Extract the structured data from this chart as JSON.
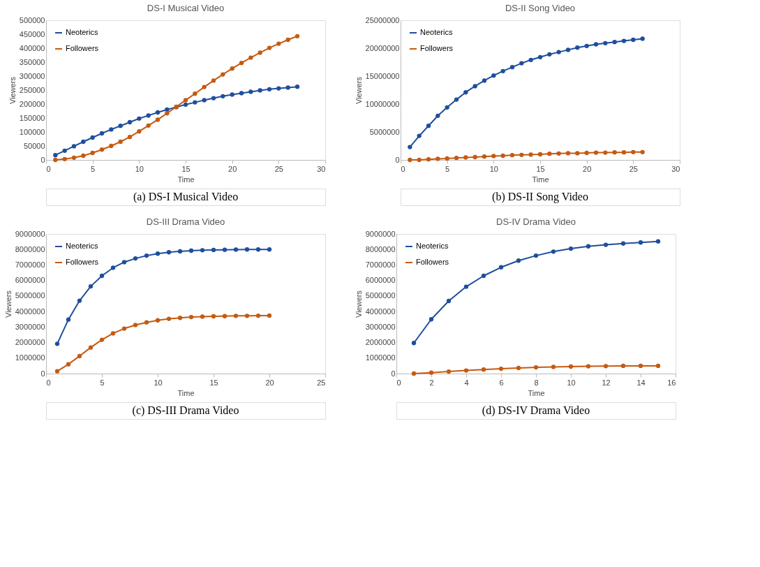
{
  "chart_data": [
    {
      "type": "line",
      "title": "DS-I Musical Video",
      "xlabel": "Time",
      "ylabel": "Viewers",
      "annotations": [
        "(a) DS-I Musical Video"
      ],
      "x": [
        1,
        2,
        3,
        4,
        5,
        6,
        7,
        8,
        9,
        10,
        11,
        12,
        13,
        14,
        15,
        16,
        17,
        18,
        19,
        20,
        21,
        22,
        23,
        24,
        25,
        26,
        27
      ],
      "series": [
        {
          "name": "Neoterics",
          "color": "#1f4e9c",
          "values": [
            17000,
            33000,
            49000,
            65000,
            80000,
            95000,
            109000,
            122000,
            135000,
            148000,
            159000,
            170000,
            180000,
            189000,
            198000,
            206000,
            214000,
            221000,
            228000,
            234000,
            239000,
            244000,
            249000,
            253000,
            256000,
            259000,
            262000
          ]
        },
        {
          "name": "Followers",
          "color": "#c55a11",
          "values": [
            0,
            3000,
            8000,
            15000,
            25000,
            37000,
            50000,
            65000,
            82000,
            102000,
            123000,
            144000,
            167000,
            190000,
            214000,
            237000,
            261000,
            284000,
            306000,
            327000,
            347000,
            366000,
            384000,
            401000,
            416000,
            430000,
            443000
          ]
        }
      ],
      "xlim": [
        0,
        30
      ],
      "xticks": [
        0,
        5,
        10,
        15,
        20,
        25,
        30
      ],
      "ylim": [
        0,
        500000
      ],
      "yticks": [
        0,
        50000,
        100000,
        150000,
        200000,
        250000,
        300000,
        350000,
        400000,
        450000,
        500000
      ],
      "legend": "top left",
      "marker": "circle",
      "line_style": "solid"
    },
    {
      "type": "line",
      "title": "DS-II Song Video",
      "xlabel": "Time",
      "ylabel": "Viewers",
      "annotations": [
        "(b) DS-II Song Video"
      ],
      "x": [
        1,
        2,
        3,
        4,
        5,
        6,
        7,
        8,
        9,
        10,
        11,
        12,
        13,
        14,
        15,
        16,
        17,
        18,
        19,
        20,
        21,
        22,
        23,
        24,
        25,
        26
      ],
      "series": [
        {
          "name": "Neoterics",
          "color": "#1f4e9c",
          "values": [
            2300000,
            4300000,
            6100000,
            7900000,
            9400000,
            10800000,
            12100000,
            13200000,
            14200000,
            15100000,
            15900000,
            16600000,
            17300000,
            17900000,
            18400000,
            18900000,
            19300000,
            19700000,
            20100000,
            20400000,
            20700000,
            20900000,
            21100000,
            21300000,
            21500000,
            21700000
          ]
        },
        {
          "name": "Followers",
          "color": "#c55a11",
          "values": [
            0,
            0,
            100000,
            200000,
            250000,
            350000,
            450000,
            500000,
            600000,
            700000,
            750000,
            850000,
            900000,
            950000,
            1000000,
            1100000,
            1150000,
            1200000,
            1200000,
            1250000,
            1300000,
            1300000,
            1350000,
            1350000,
            1400000,
            1400000
          ]
        }
      ],
      "xlim": [
        0,
        30
      ],
      "xticks": [
        0,
        5,
        10,
        15,
        20,
        25,
        30
      ],
      "ylim": [
        0,
        25000000
      ],
      "yticks": [
        0,
        5000000,
        10000000,
        15000000,
        20000000,
        25000000
      ],
      "legend": "top left",
      "marker": "circle",
      "line_style": "solid"
    },
    {
      "type": "line",
      "title": "DS-III Drama Video",
      "xlabel": "Time",
      "ylabel": "Viewers",
      "annotations": [
        "(c) DS-III Drama Video"
      ],
      "x": [
        1,
        2,
        3,
        4,
        5,
        6,
        7,
        8,
        9,
        10,
        11,
        12,
        13,
        14,
        15,
        16,
        17,
        18,
        19,
        20
      ],
      "series": [
        {
          "name": "Neoterics",
          "color": "#1f4e9c",
          "values": [
            1920000,
            3480000,
            4700000,
            5620000,
            6300000,
            6820000,
            7180000,
            7420000,
            7600000,
            7730000,
            7820000,
            7880000,
            7920000,
            7950000,
            7970000,
            7980000,
            7990000,
            8000000,
            8000000,
            8000000
          ]
        },
        {
          "name": "Followers",
          "color": "#c55a11",
          "values": [
            150000,
            600000,
            1130000,
            1680000,
            2180000,
            2590000,
            2900000,
            3130000,
            3300000,
            3430000,
            3530000,
            3590000,
            3640000,
            3670000,
            3690000,
            3700000,
            3720000,
            3720000,
            3730000,
            3740000
          ]
        }
      ],
      "xlim": [
        0,
        25
      ],
      "xticks": [
        0,
        5,
        10,
        15,
        20,
        25
      ],
      "ylim": [
        0,
        9000000
      ],
      "yticks": [
        0,
        1000000,
        2000000,
        3000000,
        4000000,
        5000000,
        6000000,
        7000000,
        8000000,
        9000000
      ],
      "legend": "top left",
      "marker": "circle",
      "line_style": "solid"
    },
    {
      "type": "line",
      "title": "DS-IV Drama Video",
      "xlabel": "Time",
      "ylabel": "Viewers",
      "annotations": [
        "(d) DS-IV Drama Video"
      ],
      "x": [
        1,
        2,
        3,
        4,
        5,
        6,
        7,
        8,
        9,
        10,
        11,
        12,
        13,
        14,
        15
      ],
      "series": [
        {
          "name": "Neoterics",
          "color": "#1f4e9c",
          "values": [
            1970000,
            3500000,
            4680000,
            5600000,
            6300000,
            6850000,
            7280000,
            7600000,
            7860000,
            8050000,
            8200000,
            8300000,
            8380000,
            8450000,
            8520000
          ]
        },
        {
          "name": "Followers",
          "color": "#c55a11",
          "values": [
            0,
            60000,
            130000,
            200000,
            260000,
            310000,
            360000,
            400000,
            430000,
            450000,
            470000,
            480000,
            500000,
            500000,
            500000
          ]
        }
      ],
      "xlim": [
        0,
        16
      ],
      "xticks": [
        0,
        2,
        4,
        6,
        8,
        10,
        12,
        14,
        16
      ],
      "ylim": [
        0,
        9000000
      ],
      "yticks": [
        0,
        1000000,
        2000000,
        3000000,
        4000000,
        5000000,
        6000000,
        7000000,
        8000000,
        9000000
      ],
      "legend": "top left",
      "marker": "circle",
      "line_style": "solid"
    }
  ]
}
